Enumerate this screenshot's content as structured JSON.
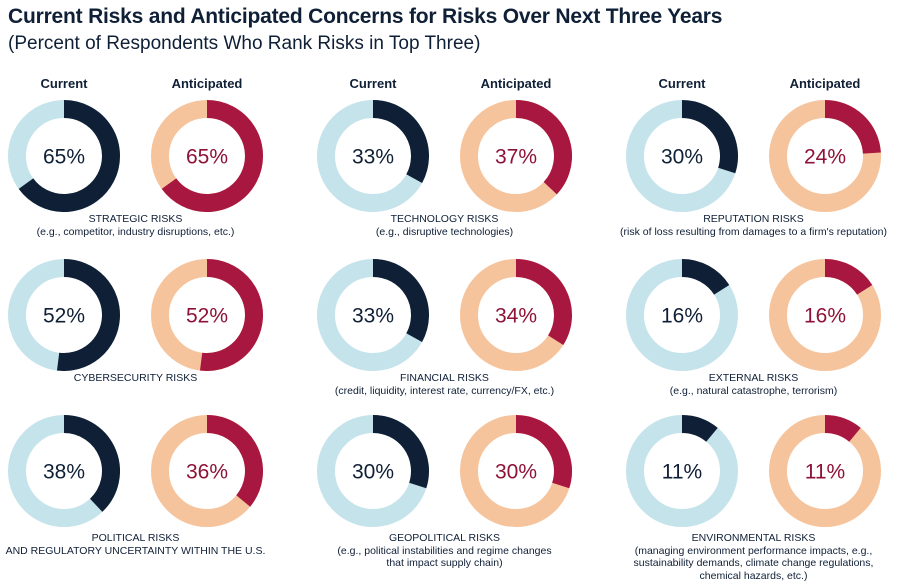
{
  "title": "Current Risks and Anticipated Concerns for Risks Over Next Three Years",
  "subtitle": "(Percent of Respondents Who Rank Risks in Top Three)",
  "column_headers": {
    "current": "Current",
    "anticipated": "Anticipated"
  },
  "colors": {
    "current_fill": "#0f1f36",
    "current_track": "#c4e3ea",
    "anticipated_fill": "#a8173f",
    "anticipated_track": "#f6c49c",
    "current_text": "#0f1f36",
    "anticipated_text": "#8e1238"
  },
  "chart_data": {
    "type": "donut",
    "panels": [
      {
        "name": "STRATEGIC RISKS",
        "description": "(e.g., competitor, industry disruptions, etc.)",
        "current": 65,
        "anticipated": 65
      },
      {
        "name": "TECHNOLOGY RISKS",
        "description": "(e.g., disruptive technologies)",
        "current": 33,
        "anticipated": 37
      },
      {
        "name": "REPUTATION RISKS",
        "description": "(risk of loss resulting from damages to a firm's reputation)",
        "current": 30,
        "anticipated": 24
      },
      {
        "name": "CYBERSECURITY RISKS",
        "description": "",
        "current": 52,
        "anticipated": 52
      },
      {
        "name": "FINANCIAL RISKS",
        "description": "(credit, liquidity, interest rate, currency/FX, etc.)",
        "current": 33,
        "anticipated": 34
      },
      {
        "name": "EXTERNAL RISKS",
        "description": "(e.g., natural catastrophe, terrorism)",
        "current": 16,
        "anticipated": 16
      },
      {
        "name": "POLITICAL RISKS\nAND REGULATORY UNCERTAINTY WITHIN THE U.S.",
        "description": "",
        "current": 38,
        "anticipated": 36
      },
      {
        "name": "GEOPOLITICAL RISKS",
        "description": "(e.g., political instabilities and regime changes\nthat impact supply chain)",
        "current": 30,
        "anticipated": 30
      },
      {
        "name": "ENVIRONMENTAL RISKS",
        "description": "(managing environment performance impacts, e.g.,\nsustainability demands, climate change regulations,\nchemical hazards, etc.)",
        "current": 11,
        "anticipated": 11
      }
    ],
    "value_suffix": "%"
  }
}
